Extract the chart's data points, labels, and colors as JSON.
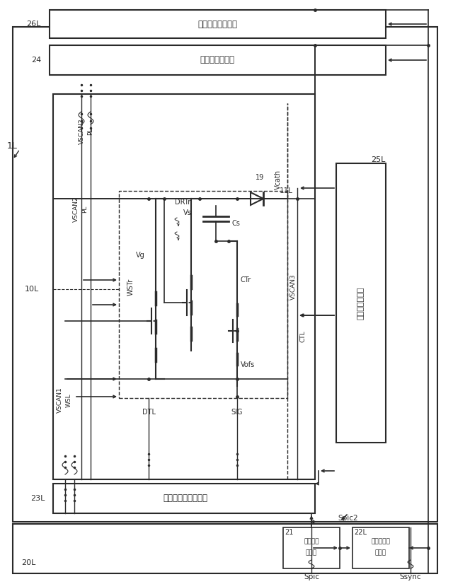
{
  "fig_width": 6.4,
  "fig_height": 8.26,
  "bg_color": "#ffffff",
  "lc": "#2a2a2a",
  "label_26L_text": "垂直走査回路供給",
  "label_24_text": "電源線駆動回路",
  "label_23L_text": "水平走査線駆動回路",
  "label_data_text": "データ線駆動部",
  "label_26L": "26L",
  "label_24": "24",
  "label_23L": "23L",
  "label_25L": "25L",
  "label_20L": "20L",
  "label_21": "21",
  "label_22L": "22L",
  "label_1L": "1L",
  "label_10L": "10L",
  "label_11L": "11L",
  "label_VSCAN1": "VSCAN1",
  "label_VSCAN2": "VSCAN2",
  "label_VSCAN3": "VSCAN3",
  "label_WSL": "WSL",
  "label_PL": "PL",
  "label_CTL": "CTL",
  "label_DTL": "DTL",
  "label_SIG": "SIG",
  "label_DRTr": "DRTr",
  "label_WSTr": "WSTr",
  "label_CTr": "CTr",
  "label_Vg": "Vg",
  "label_Vs": "Vs",
  "label_Vcath": "Vcath",
  "label_Vofs": "Vofs",
  "label_Cs": "Cs",
  "label_19": "19",
  "label_Spic": "Spic",
  "label_Spic2": "Spic2",
  "label_Ssync": "Ssync",
  "label_img1": "画像信号",
  "label_img2": "処理部",
  "label_tim1": "タイミング",
  "label_tim2": "生成部"
}
